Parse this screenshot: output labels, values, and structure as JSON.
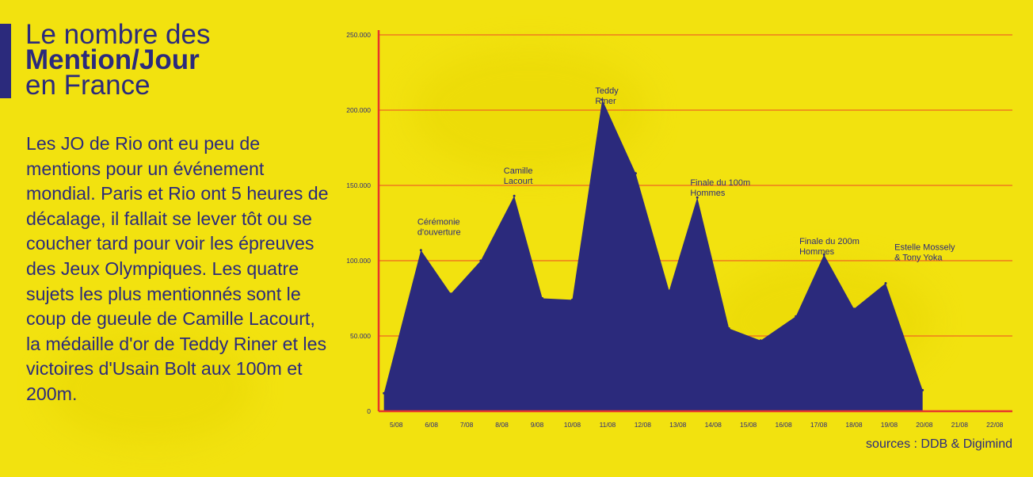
{
  "title": {
    "line1": "Le nombre des",
    "line2": "Mention/Jour",
    "line3": "en France"
  },
  "description": "Les JO de Rio ont eu peu de mentions pour un événement mondial. Paris et Rio ont 5 heures de décalage, il fallait se lever tôt ou se coucher tard pour voir les épreuves des Jeux Olympiques. Les quatre sujets les plus mentionnés sont le coup de gueule de Camille Lacourt, la médaille d'or de Teddy Riner et les victoires d'Usain Bolt aux 100m et 200m.",
  "source": "sources : DDB & Digimind",
  "colors": {
    "background": "#f2e20f",
    "area": "#2b2a7c",
    "grid": "#f07a1e",
    "axis": "#e8352b"
  },
  "chart_data": {
    "type": "area",
    "title": "",
    "xlabel": "",
    "ylabel": "",
    "ylim": [
      0,
      250000
    ],
    "y_ticks": [
      0,
      50000,
      100000,
      150000,
      200000,
      250000
    ],
    "y_tick_labels": [
      "0",
      "50.000",
      "100.000",
      "150.000",
      "200.000",
      "250.000"
    ],
    "grid": true,
    "categories": [
      "5/08",
      "6/08",
      "7/08",
      "8/08",
      "9/08",
      "10/08",
      "11/08",
      "12/08",
      "13/08",
      "14/08",
      "15/08",
      "16/08",
      "17/08",
      "18/08",
      "19/08",
      "20/08",
      "21/08",
      "22/08"
    ],
    "x": [
      -0.35,
      0.7,
      1.55,
      2.4,
      3.35,
      4.15,
      5.0,
      5.85,
      6.8,
      7.75,
      8.55,
      9.45,
      10.35,
      11.35,
      12.15,
      13.0,
      13.9,
      14.95
    ],
    "values": [
      12000,
      107000,
      78000,
      100000,
      143000,
      75000,
      74000,
      207000,
      158000,
      80000,
      142000,
      55000,
      47000,
      63000,
      104000,
      68000,
      85000,
      14000
    ],
    "annotations": [
      {
        "lines": [
          "Cérémonie",
          "d'ouverture"
        ],
        "x": 0.6,
        "y": 124000
      },
      {
        "lines": [
          "Camille",
          "Lacourt"
        ],
        "x": 3.05,
        "y": 158000
      },
      {
        "lines": [
          "Teddy",
          "Riner"
        ],
        "x": 5.65,
        "y": 211000
      },
      {
        "lines": [
          "Finale du 100m",
          "Hommes"
        ],
        "x": 8.35,
        "y": 150000
      },
      {
        "lines": [
          "Finale du 200m",
          "Hommes"
        ],
        "x": 11.45,
        "y": 111000
      },
      {
        "lines": [
          "Estelle Mossely",
          "& Tony Yoka"
        ],
        "x": 14.15,
        "y": 107000
      }
    ]
  }
}
